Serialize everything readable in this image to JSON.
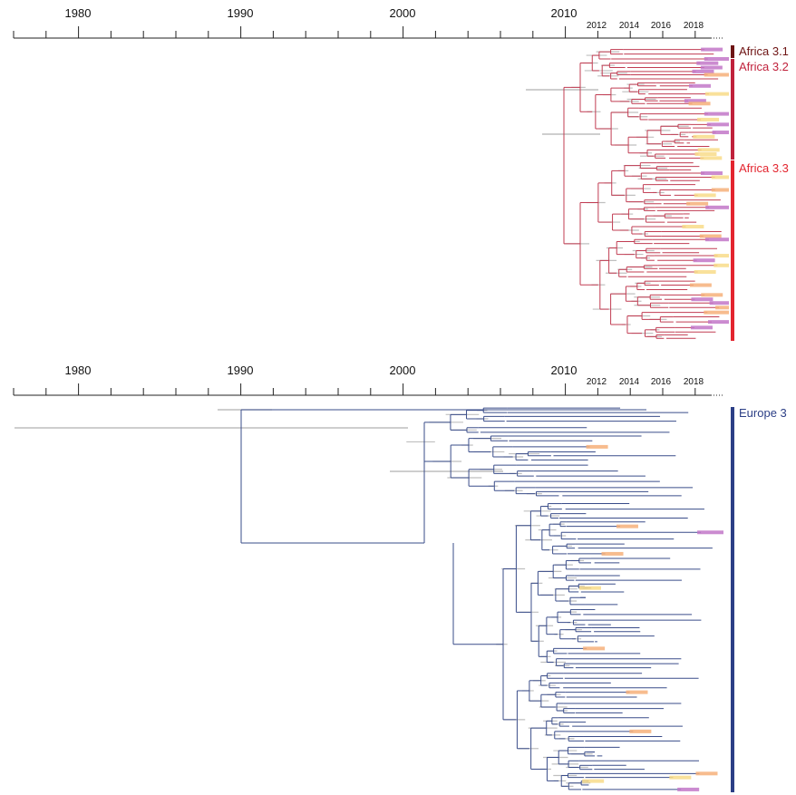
{
  "colors": {
    "africa_3_1": "#6e1414",
    "africa_3_2": "#c0223c",
    "africa_3_3": "#e3252f",
    "europe_3": "#2c3f86",
    "tree_africa": "#c13c52",
    "tree_europe": "#3a4d8a",
    "hpd_bar": "#b0b0b0",
    "tip_orange": "#f6b07a",
    "tip_yellow": "#f8dc8a",
    "tip_purple": "#c277c8",
    "axis": "#222222"
  },
  "panels": [
    {
      "id": "africa",
      "axis": {
        "major_labels": [
          "1980",
          "1990",
          "2000",
          "2010"
        ],
        "minor_labels": [
          "2012",
          "2014",
          "2016",
          "2018"
        ]
      },
      "clades": [
        {
          "label": "Africa 3.1",
          "color": "#6e1414"
        },
        {
          "label": "Africa 3.2",
          "color": "#c0223c"
        },
        {
          "label": "Africa 3.3",
          "color": "#e3252f"
        }
      ]
    },
    {
      "id": "europe",
      "axis": {
        "major_labels": [
          "1980",
          "1990",
          "2000",
          "2010"
        ],
        "minor_labels": [
          "2012",
          "2014",
          "2016",
          "2018"
        ]
      },
      "clades": [
        {
          "label": "Europe 3",
          "color": "#2c3f86"
        }
      ]
    }
  ]
}
